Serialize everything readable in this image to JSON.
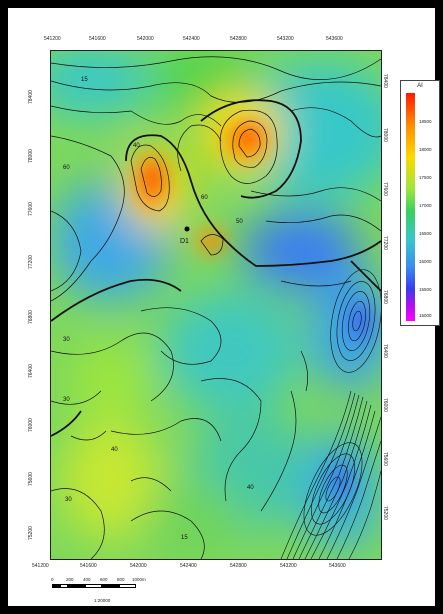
{
  "map": {
    "x_ticks": [
      "541200",
      "541600",
      "542000",
      "542400",
      "542800",
      "543200",
      "543600"
    ],
    "y_ticks": [
      "78400",
      "78000",
      "77600",
      "77200",
      "76800",
      "76400",
      "76000",
      "75600",
      "75200"
    ],
    "right_ticks": [
      "78400",
      "78000",
      "77600",
      "77200",
      "76800",
      "76400",
      "76000",
      "75600",
      "75200"
    ],
    "well_label": "D1",
    "contour_labels": [
      "15",
      "40",
      "60",
      "60",
      "50",
      "30",
      "30",
      "40",
      "30",
      "40",
      "15"
    ]
  },
  "legend": {
    "title": "AI",
    "labels": [
      "18500",
      "18000",
      "17500",
      "17000",
      "16500",
      "16000",
      "15500",
      "15000"
    ]
  },
  "scale": {
    "labels": [
      "0",
      "200",
      "400",
      "600",
      "800",
      "1000m"
    ],
    "ratio": "1:20000"
  },
  "colors": {
    "red": "#ff1a00",
    "orange": "#ff9a00",
    "yellow": "#ffe000",
    "green": "#44d24a",
    "cyan": "#38c8c8",
    "blue": "#3a7ef0",
    "purple": "#a000f0",
    "magenta": "#ff00ff",
    "contour": "#111111"
  }
}
